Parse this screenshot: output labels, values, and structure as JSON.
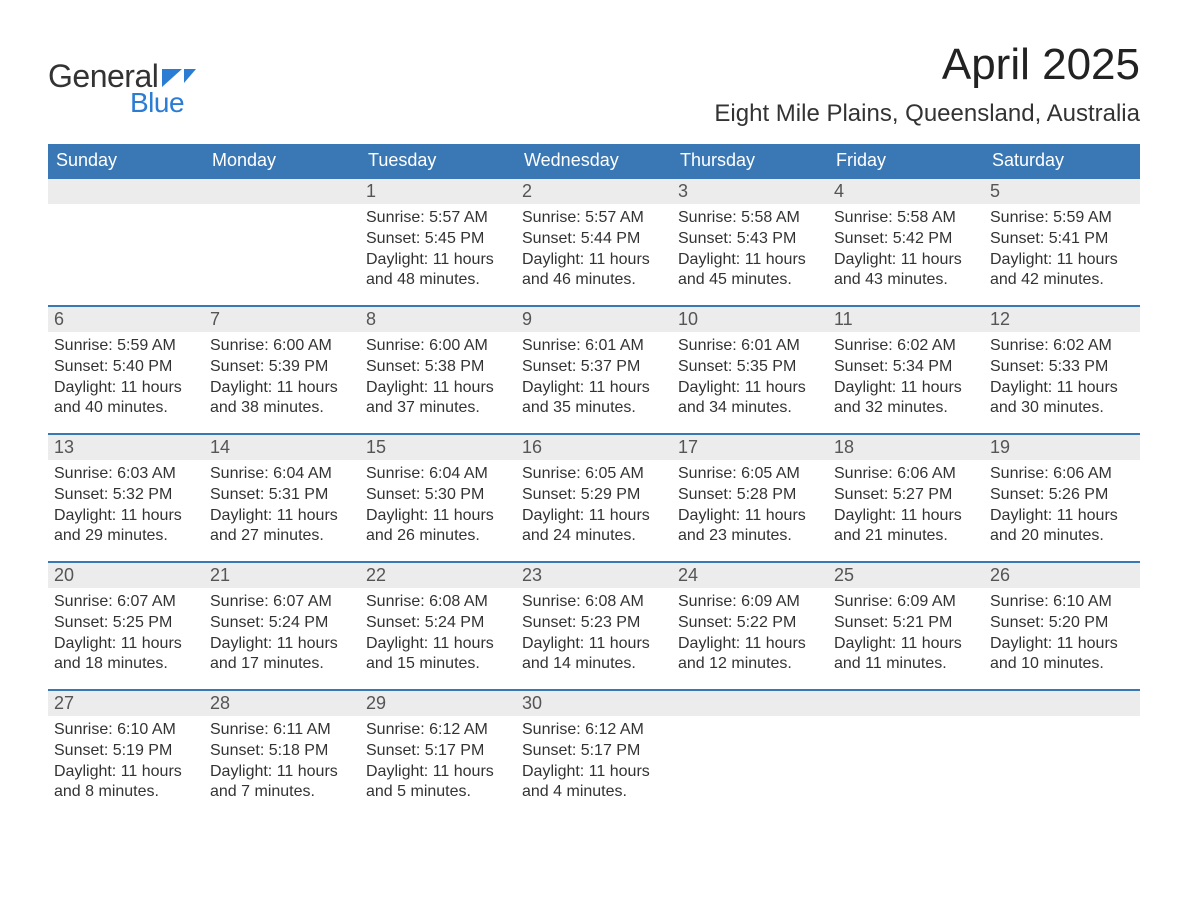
{
  "logo": {
    "word1": "General",
    "word2": "Blue",
    "accent_color": "#2b7cd3"
  },
  "title": "April 2025",
  "location": "Eight Mile Plains, Queensland, Australia",
  "colors": {
    "header_bg": "#3a78b5",
    "header_text": "#ffffff",
    "daybar_bg": "#ececec",
    "daybar_border": "#3a78b5",
    "body_text": "#333333"
  },
  "day_headers": [
    "Sunday",
    "Monday",
    "Tuesday",
    "Wednesday",
    "Thursday",
    "Friday",
    "Saturday"
  ],
  "weeks": [
    [
      null,
      null,
      {
        "n": "1",
        "sr": "5:57 AM",
        "ss": "5:45 PM",
        "dl": "11 hours and 48 minutes."
      },
      {
        "n": "2",
        "sr": "5:57 AM",
        "ss": "5:44 PM",
        "dl": "11 hours and 46 minutes."
      },
      {
        "n": "3",
        "sr": "5:58 AM",
        "ss": "5:43 PM",
        "dl": "11 hours and 45 minutes."
      },
      {
        "n": "4",
        "sr": "5:58 AM",
        "ss": "5:42 PM",
        "dl": "11 hours and 43 minutes."
      },
      {
        "n": "5",
        "sr": "5:59 AM",
        "ss": "5:41 PM",
        "dl": "11 hours and 42 minutes."
      }
    ],
    [
      {
        "n": "6",
        "sr": "5:59 AM",
        "ss": "5:40 PM",
        "dl": "11 hours and 40 minutes."
      },
      {
        "n": "7",
        "sr": "6:00 AM",
        "ss": "5:39 PM",
        "dl": "11 hours and 38 minutes."
      },
      {
        "n": "8",
        "sr": "6:00 AM",
        "ss": "5:38 PM",
        "dl": "11 hours and 37 minutes."
      },
      {
        "n": "9",
        "sr": "6:01 AM",
        "ss": "5:37 PM",
        "dl": "11 hours and 35 minutes."
      },
      {
        "n": "10",
        "sr": "6:01 AM",
        "ss": "5:35 PM",
        "dl": "11 hours and 34 minutes."
      },
      {
        "n": "11",
        "sr": "6:02 AM",
        "ss": "5:34 PM",
        "dl": "11 hours and 32 minutes."
      },
      {
        "n": "12",
        "sr": "6:02 AM",
        "ss": "5:33 PM",
        "dl": "11 hours and 30 minutes."
      }
    ],
    [
      {
        "n": "13",
        "sr": "6:03 AM",
        "ss": "5:32 PM",
        "dl": "11 hours and 29 minutes."
      },
      {
        "n": "14",
        "sr": "6:04 AM",
        "ss": "5:31 PM",
        "dl": "11 hours and 27 minutes."
      },
      {
        "n": "15",
        "sr": "6:04 AM",
        "ss": "5:30 PM",
        "dl": "11 hours and 26 minutes."
      },
      {
        "n": "16",
        "sr": "6:05 AM",
        "ss": "5:29 PM",
        "dl": "11 hours and 24 minutes."
      },
      {
        "n": "17",
        "sr": "6:05 AM",
        "ss": "5:28 PM",
        "dl": "11 hours and 23 minutes."
      },
      {
        "n": "18",
        "sr": "6:06 AM",
        "ss": "5:27 PM",
        "dl": "11 hours and 21 minutes."
      },
      {
        "n": "19",
        "sr": "6:06 AM",
        "ss": "5:26 PM",
        "dl": "11 hours and 20 minutes."
      }
    ],
    [
      {
        "n": "20",
        "sr": "6:07 AM",
        "ss": "5:25 PM",
        "dl": "11 hours and 18 minutes."
      },
      {
        "n": "21",
        "sr": "6:07 AM",
        "ss": "5:24 PM",
        "dl": "11 hours and 17 minutes."
      },
      {
        "n": "22",
        "sr": "6:08 AM",
        "ss": "5:24 PM",
        "dl": "11 hours and 15 minutes."
      },
      {
        "n": "23",
        "sr": "6:08 AM",
        "ss": "5:23 PM",
        "dl": "11 hours and 14 minutes."
      },
      {
        "n": "24",
        "sr": "6:09 AM",
        "ss": "5:22 PM",
        "dl": "11 hours and 12 minutes."
      },
      {
        "n": "25",
        "sr": "6:09 AM",
        "ss": "5:21 PM",
        "dl": "11 hours and 11 minutes."
      },
      {
        "n": "26",
        "sr": "6:10 AM",
        "ss": "5:20 PM",
        "dl": "11 hours and 10 minutes."
      }
    ],
    [
      {
        "n": "27",
        "sr": "6:10 AM",
        "ss": "5:19 PM",
        "dl": "11 hours and 8 minutes."
      },
      {
        "n": "28",
        "sr": "6:11 AM",
        "ss": "5:18 PM",
        "dl": "11 hours and 7 minutes."
      },
      {
        "n": "29",
        "sr": "6:12 AM",
        "ss": "5:17 PM",
        "dl": "11 hours and 5 minutes."
      },
      {
        "n": "30",
        "sr": "6:12 AM",
        "ss": "5:17 PM",
        "dl": "11 hours and 4 minutes."
      },
      null,
      null,
      null
    ]
  ],
  "labels": {
    "sunrise": "Sunrise: ",
    "sunset": "Sunset: ",
    "daylight": "Daylight: "
  }
}
